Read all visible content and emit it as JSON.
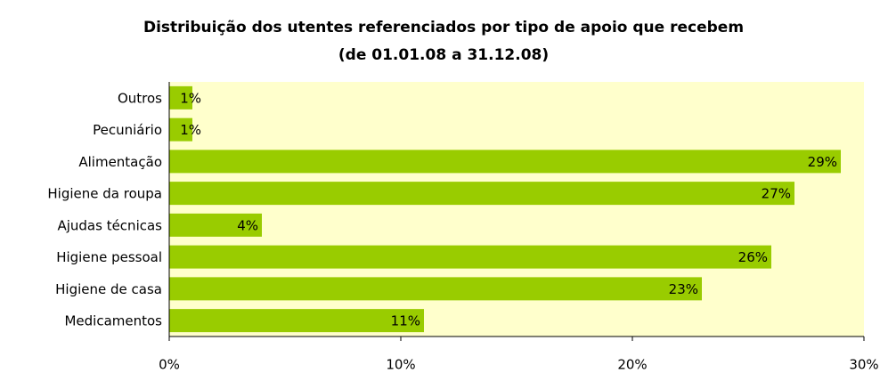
{
  "chart_data": {
    "type": "bar",
    "orientation": "horizontal",
    "title": [
      "Distribuição dos utentes referenciados por tipo de apoio que recebem",
      "(de 01.01.08 a 31.12.08)"
    ],
    "categories": [
      "Outros",
      "Pecuniário",
      "Alimentação",
      "Higiene da roupa",
      "Ajudas técnicas",
      "Higiene pessoal",
      "Higiene de casa",
      "Medicamentos"
    ],
    "values": [
      1,
      1,
      29,
      27,
      4,
      26,
      23,
      11
    ],
    "value_labels": [
      "1%",
      "1%",
      "29%",
      "27%",
      "4%",
      "26%",
      "23%",
      "11%"
    ],
    "color": "#99cc00",
    "xlim": [
      0,
      30
    ],
    "xticks": [
      {
        "value": 0,
        "label": "0%"
      },
      {
        "value": 10,
        "label": "10%"
      },
      {
        "value": 20,
        "label": "20%"
      },
      {
        "value": 30,
        "label": "30%"
      }
    ],
    "plot_background": "#ffffcc"
  }
}
